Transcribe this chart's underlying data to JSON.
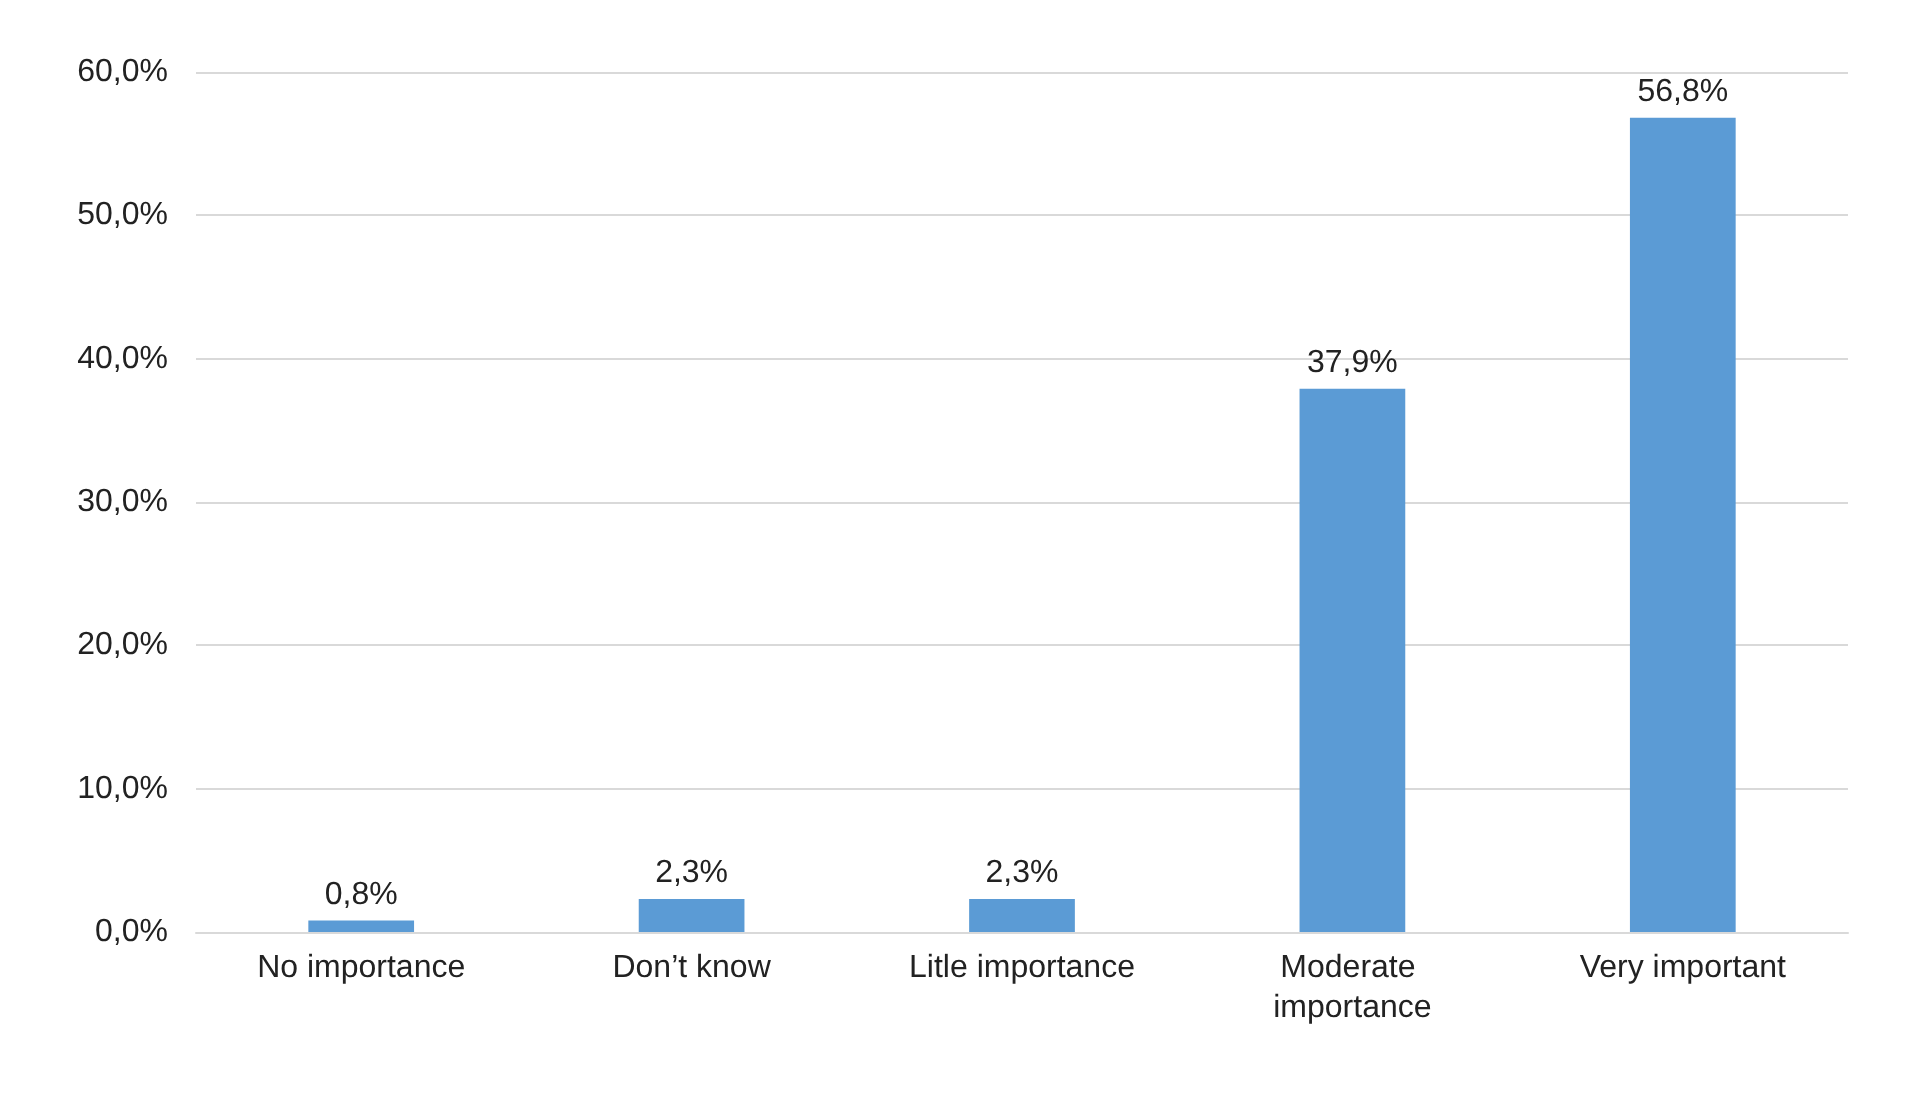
{
  "chart_data": {
    "type": "bar",
    "categories": [
      "No importance",
      "Don’t know",
      "Litle importance",
      "Moderate importance",
      "Very important"
    ],
    "values": [
      0.8,
      2.3,
      2.3,
      37.9,
      56.8
    ],
    "value_labels": [
      "0,8%",
      "2,3%",
      "2,3%",
      "37,9%",
      "56,8%"
    ],
    "color": "#5b9bd5",
    "ylim": [
      0,
      60
    ],
    "yticks": [
      {
        "value": 0,
        "label": "0,0%"
      },
      {
        "value": 10,
        "label": "10,0%"
      },
      {
        "value": 20,
        "label": "20,0%"
      },
      {
        "value": 30,
        "label": "30,0%"
      },
      {
        "value": 40,
        "label": "40,0%"
      },
      {
        "value": 50,
        "label": "50,0%"
      },
      {
        "value": 60,
        "label": "60,0%"
      }
    ],
    "grid": "y"
  }
}
